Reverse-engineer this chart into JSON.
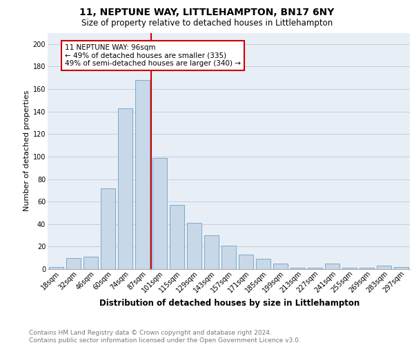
{
  "title": "11, NEPTUNE WAY, LITTLEHAMPTON, BN17 6NY",
  "subtitle": "Size of property relative to detached houses in Littlehampton",
  "xlabel": "Distribution of detached houses by size in Littlehampton",
  "ylabel": "Number of detached properties",
  "categories": [
    "18sqm",
    "32sqm",
    "46sqm",
    "60sqm",
    "74sqm",
    "87sqm",
    "101sqm",
    "115sqm",
    "129sqm",
    "143sqm",
    "157sqm",
    "171sqm",
    "185sqm",
    "199sqm",
    "213sqm",
    "227sqm",
    "241sqm",
    "255sqm",
    "269sqm",
    "283sqm",
    "297sqm"
  ],
  "values": [
    2,
    10,
    11,
    72,
    143,
    168,
    99,
    57,
    41,
    30,
    21,
    13,
    9,
    5,
    1,
    1,
    5,
    1,
    1,
    3,
    2
  ],
  "bar_color": "#c8d8e8",
  "bar_edge_color": "#7aaac8",
  "vline_x_index": 5.5,
  "vline_color": "#cc0000",
  "annotation_text": "11 NEPTUNE WAY: 96sqm\n← 49% of detached houses are smaller (335)\n49% of semi-detached houses are larger (340) →",
  "annotation_box_color": "#ffffff",
  "annotation_box_edge_color": "#cc0000",
  "ylim": [
    0,
    210
  ],
  "yticks": [
    0,
    20,
    40,
    60,
    80,
    100,
    120,
    140,
    160,
    180,
    200
  ],
  "grid_color": "#c0c8d8",
  "background_color": "#e8eef5",
  "footer_line1": "Contains HM Land Registry data © Crown copyright and database right 2024.",
  "footer_line2": "Contains public sector information licensed under the Open Government Licence v3.0.",
  "title_fontsize": 10,
  "subtitle_fontsize": 8.5,
  "xlabel_fontsize": 8.5,
  "ylabel_fontsize": 8,
  "tick_fontsize": 7,
  "footer_fontsize": 6.5,
  "annotation_fontsize": 7.5
}
